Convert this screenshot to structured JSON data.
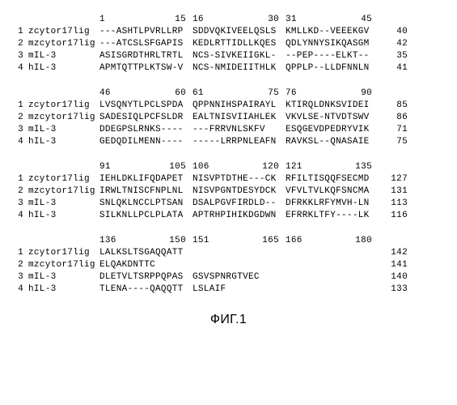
{
  "labels": [
    "zcytor17lig",
    "mzcytor17lig",
    "mIL-3",
    "hIL-3"
  ],
  "caption": "ФИГ.1",
  "blocks": [
    {
      "ruler": [
        [
          "1",
          "15"
        ],
        [
          "16",
          "30"
        ],
        [
          "31",
          "45"
        ]
      ],
      "rows": [
        {
          "cols": [
            "---ASHTLPVRLLRP",
            "SDDVQKIVEELQSLS",
            "KMLLKD--VEEEKGV"
          ],
          "end": "40"
        },
        {
          "cols": [
            "---ATCSLSFGAPIS",
            "KEDLRTTIDLLKQES",
            "QDLYNNYSIKQASGM"
          ],
          "end": "42"
        },
        {
          "cols": [
            "ASISGRDTHRLTRTL",
            "NCS-SIVKEIIGKL-",
            "--PEP----ELKT--"
          ],
          "end": "35"
        },
        {
          "cols": [
            "APMTQTTPLKTSW-V",
            "NCS-NMIDEIITHLK",
            "QPPLP--LLDFNNLN"
          ],
          "end": "41"
        }
      ]
    },
    {
      "ruler": [
        [
          "46",
          "60"
        ],
        [
          "61",
          "75"
        ],
        [
          "76",
          "90"
        ]
      ],
      "rows": [
        {
          "cols": [
            "LVSQNYTLPCLSPDA",
            "QPPNNIHSPAIRAYL",
            "KTIRQLDNKSVIDEI"
          ],
          "end": "85"
        },
        {
          "cols": [
            "SADESIQLPCFSLDR",
            "EALTNISVIIAHLEK",
            "VKVLSE-NTVDTSWV"
          ],
          "end": "86"
        },
        {
          "cols": [
            "DDEGPSLRNKS----",
            "---FRRVNLSKFV",
            "ESQGEVDPEDRYVIK"
          ],
          "end": "71"
        },
        {
          "cols": [
            "GEDQDILMENN----",
            "-----LRRPNLEAFN",
            "RAVKSL--QNASAIE"
          ],
          "end": "75"
        }
      ]
    },
    {
      "ruler": [
        [
          "91",
          "105"
        ],
        [
          "106",
          "120"
        ],
        [
          "121",
          "135"
        ]
      ],
      "rows": [
        {
          "cols": [
            "IEHLDKLIFQDAPET",
            "NISVPTDTHE---CK",
            "RFILTISQQFSECMD"
          ],
          "end": "127"
        },
        {
          "cols": [
            "IRWLTNISCFNPLNL",
            "NISVPGNTDESYDCK",
            "VFVLTVLKQFSNCMA"
          ],
          "end": "131"
        },
        {
          "cols": [
            "SNLQKLNCCLPTSAN",
            "DSALPGVFIRDLD--",
            "DFRKKLRFYMVH-LN"
          ],
          "end": "113"
        },
        {
          "cols": [
            "SILKNLLPCLPLATA",
            "APTRHPIHIKDGDWN",
            "EFRRKLTFY----LK"
          ],
          "end": "116"
        }
      ]
    },
    {
      "ruler": [
        [
          "136",
          "150"
        ],
        [
          "151",
          "165"
        ],
        [
          "166",
          "180"
        ]
      ],
      "rows": [
        {
          "cols": [
            "LALKSLTSGAQQATT",
            "",
            ""
          ],
          "end": "142"
        },
        {
          "cols": [
            "ELQAKDNTTC",
            "",
            ""
          ],
          "end": "141"
        },
        {
          "cols": [
            "DLETVLTSRPPQPAS",
            "GSVSPNRGTVEC",
            ""
          ],
          "end": "140"
        },
        {
          "cols": [
            "TLENA----QAQQTT",
            "LSLAIF",
            ""
          ],
          "end": "133"
        }
      ]
    }
  ]
}
